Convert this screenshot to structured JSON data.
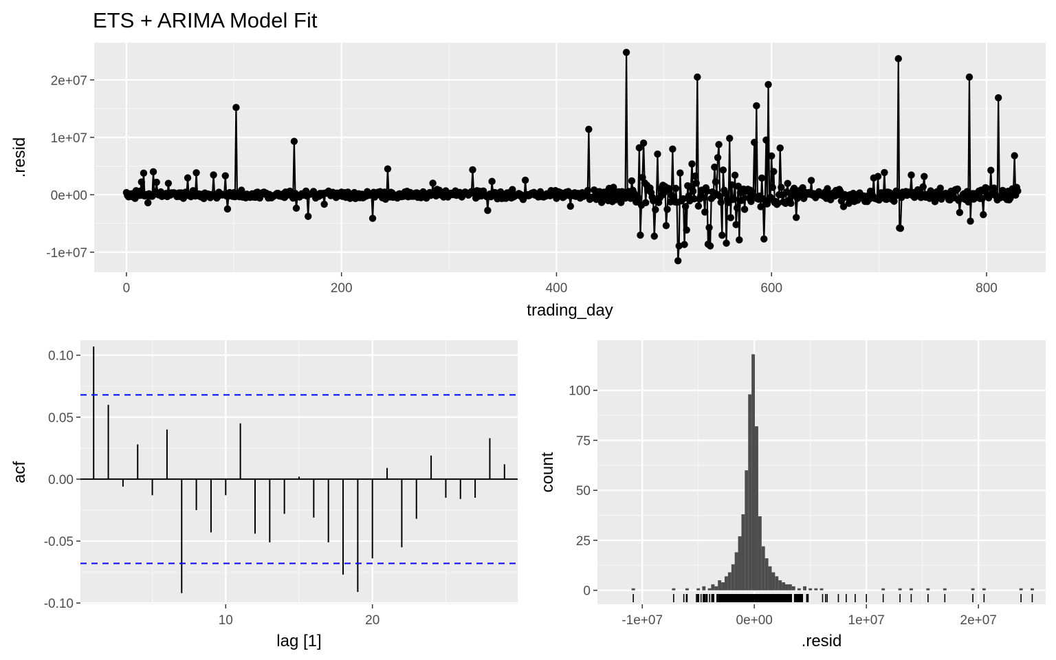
{
  "chart_data": [
    {
      "type": "line",
      "title": "ETS + ARIMA Model Fit",
      "xlabel": "trading_day",
      "ylabel": ".resid",
      "xlim": [
        -30,
        855
      ],
      "ylim": [
        -13500000,
        26500000
      ],
      "x_ticks": [
        0,
        200,
        400,
        600,
        800
      ],
      "x_tick_labels": [
        "0",
        "200",
        "400",
        "600",
        "800"
      ],
      "y_ticks": [
        -10000000,
        0,
        10000000,
        20000000
      ],
      "y_tick_labels": [
        "-1e+07",
        "0e+00",
        "1e+07",
        "2e+07"
      ],
      "grid": true,
      "markers": true,
      "notable_points": [
        {
          "x": 102,
          "y": 15200000
        },
        {
          "x": 156,
          "y": 9300000
        },
        {
          "x": 243,
          "y": 4500000
        },
        {
          "x": 430,
          "y": 11400000
        },
        {
          "x": 465,
          "y": 24800000
        },
        {
          "x": 513,
          "y": -11500000
        },
        {
          "x": 531,
          "y": 20500000
        },
        {
          "x": 586,
          "y": 15500000
        },
        {
          "x": 593,
          "y": -7700000
        },
        {
          "x": 597,
          "y": 19200000
        },
        {
          "x": 718,
          "y": 23700000
        },
        {
          "x": 719,
          "y": -5800000
        },
        {
          "x": 784,
          "y": 20500000
        },
        {
          "x": 785,
          "y": -4600000
        },
        {
          "x": 811,
          "y": 16900000
        },
        {
          "x": 826,
          "y": 6800000
        }
      ]
    },
    {
      "type": "bar",
      "xlabel": "lag [1]",
      "ylabel": "acf",
      "xlim": [
        0.1,
        29.9
      ],
      "ylim": [
        -0.101,
        0.112
      ],
      "x_ticks": [
        10,
        20
      ],
      "x_tick_labels": [
        "10",
        "20"
      ],
      "y_ticks": [
        -0.1,
        -0.05,
        0.0,
        0.05,
        0.1
      ],
      "y_tick_labels": [
        "-0.10",
        "-0.05",
        "0.00",
        "0.05",
        "0.10"
      ],
      "lags": [
        1,
        2,
        3,
        4,
        5,
        6,
        7,
        8,
        9,
        10,
        11,
        12,
        13,
        14,
        15,
        16,
        17,
        18,
        19,
        20,
        21,
        22,
        23,
        24,
        25,
        26,
        27,
        28,
        29
      ],
      "values": [
        0.107,
        0.06,
        -0.006,
        0.028,
        -0.013,
        0.04,
        -0.092,
        -0.025,
        -0.043,
        -0.013,
        0.045,
        -0.044,
        -0.051,
        -0.028,
        0.002,
        -0.031,
        -0.051,
        -0.077,
        -0.091,
        -0.064,
        0.009,
        -0.055,
        -0.032,
        0.019,
        -0.015,
        -0.016,
        -0.015,
        0.033,
        0.012
      ],
      "confidence_bound": 0.068,
      "grid": true
    },
    {
      "type": "bar",
      "subtype": "histogram",
      "xlabel": ".resid",
      "ylabel": "count",
      "xlim": [
        -14000000,
        26000000
      ],
      "ylim": [
        -7,
        125
      ],
      "x_ticks": [
        -10000000,
        0,
        10000000,
        20000000
      ],
      "x_tick_labels": [
        "-1e+07",
        "0e+00",
        "1e+07",
        "2e+07"
      ],
      "y_ticks": [
        0,
        25,
        50,
        75,
        100
      ],
      "y_tick_labels": [
        "0",
        "25",
        "50",
        "75",
        "100"
      ],
      "bins_center": [
        -6000000,
        -5000000,
        -4500000,
        -4000000,
        -3700000,
        -3400000,
        -3100000,
        -2800000,
        -2500000,
        -2200000,
        -1900000,
        -1600000,
        -1300000,
        -1000000,
        -700000,
        -400000,
        -100000,
        200000,
        500000,
        800000,
        1100000,
        1400000,
        1700000,
        2000000,
        2300000,
        2600000,
        2900000,
        3200000,
        3500000,
        4000000,
        4500000,
        5000000,
        5500000,
        6000000
      ],
      "counts": [
        1,
        1,
        2,
        1,
        3,
        2,
        5,
        4,
        7,
        9,
        13,
        19,
        27,
        38,
        60,
        98,
        118,
        82,
        37,
        22,
        16,
        12,
        9,
        7,
        5,
        4,
        3,
        3,
        2,
        1,
        2,
        1,
        1,
        1
      ],
      "bin_width": 300000,
      "rug": true,
      "grid": true
    }
  ]
}
